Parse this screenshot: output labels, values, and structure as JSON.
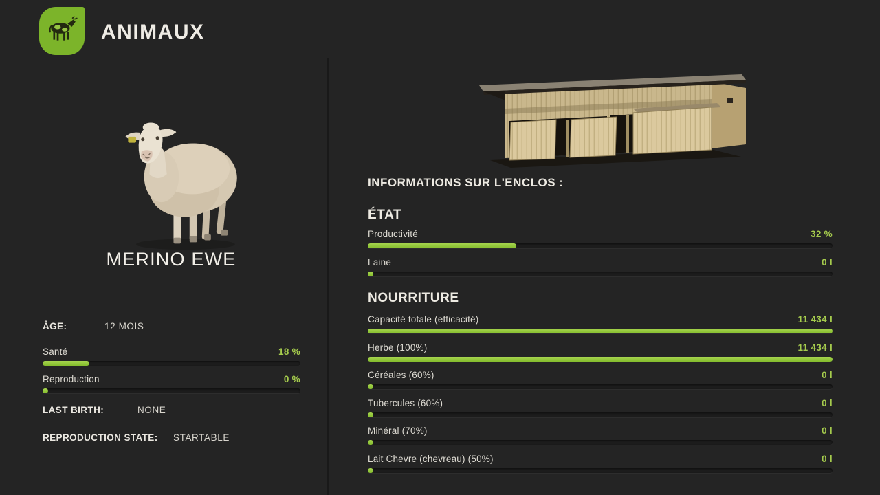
{
  "header": {
    "title": "ANIMAUX",
    "logo_icon": "cow-icon"
  },
  "animal": {
    "name": "MERINO EWE",
    "portrait_icon": "sheep-image",
    "age": {
      "label": "ÂGE:",
      "value": "12 MOIS"
    },
    "health": {
      "label": "Santé",
      "value": "18 %",
      "percent": 18
    },
    "reproduction": {
      "label": "Reproduction",
      "value": "0 %",
      "percent": 0
    },
    "last_birth": {
      "label": "LAST BIRTH:",
      "value": "NONE"
    },
    "reproduction_state": {
      "label": "REPRODUCTION STATE:",
      "value": "STARTABLE"
    }
  },
  "enclosure": {
    "title": "INFORMATIONS SUR L'ENCLOS :",
    "image_icon": "sheep-barn-image",
    "etat": {
      "heading": "ÉTAT",
      "rows": [
        {
          "label": "Productivité",
          "value": "32 %",
          "percent": 32
        },
        {
          "label": "Laine",
          "value": "0 l",
          "percent": 0
        }
      ]
    },
    "nourriture": {
      "heading": "NOURRITURE",
      "rows": [
        {
          "label": "Capacité totale (efficacité)",
          "value": "11 434 l",
          "percent": 100
        },
        {
          "label": "Herbe (100%)",
          "value": "11 434 l",
          "percent": 100
        },
        {
          "label": "Céréales (60%)",
          "value": "0 l",
          "percent": 0
        },
        {
          "label": "Tubercules (60%)",
          "value": "0 l",
          "percent": 0
        },
        {
          "label": "Minéral (70%)",
          "value": "0 l",
          "percent": 0
        },
        {
          "label": "Lait Chevre (chevreau) (50%)",
          "value": "0 l",
          "percent": 0
        }
      ]
    }
  },
  "colors": {
    "background": "#242424",
    "accent_green_bar": "#8ec63c",
    "accent_green_text": "#a5cb4d",
    "logo_green": "#7cb42a",
    "text_light": "#eceae2"
  }
}
